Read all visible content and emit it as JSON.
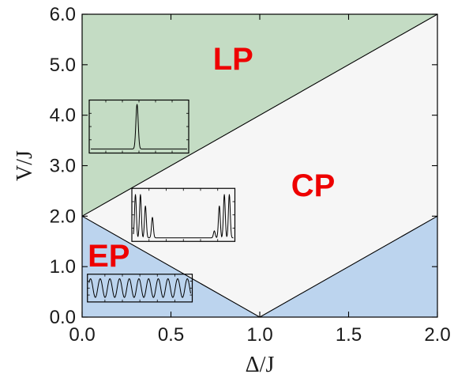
{
  "chart_data": {
    "type": "area",
    "title": "",
    "xlabel": "Δ/J",
    "ylabel": "V/J",
    "xlim": [
      0.0,
      2.0
    ],
    "ylim": [
      0.0,
      6.0
    ],
    "xticks": [
      "0.0",
      "0.5",
      "1.0",
      "1.5",
      "2.0"
    ],
    "yticks": [
      "0.0",
      "1.0",
      "2.0",
      "3.0",
      "4.0",
      "5.0",
      "6.0"
    ],
    "boundaries": [
      {
        "points": [
          [
            0.0,
            2.0
          ],
          [
            2.0,
            6.0
          ]
        ]
      },
      {
        "points": [
          [
            0.0,
            2.0
          ],
          [
            1.0,
            0.0
          ],
          [
            2.0,
            2.0
          ]
        ]
      }
    ],
    "regions": [
      {
        "label": "LP",
        "color": "#c4dcc4",
        "label_at": [
          0.85,
          4.9
        ],
        "polygon": [
          [
            0.0,
            2.0
          ],
          [
            2.0,
            6.0
          ],
          [
            0.0,
            6.0
          ]
        ]
      },
      {
        "label": "CP",
        "color": "#f6f6f6",
        "label_at": [
          1.3,
          2.4
        ],
        "polygon": [
          [
            0.0,
            2.0
          ],
          [
            1.0,
            0.0
          ],
          [
            2.0,
            2.0
          ],
          [
            2.0,
            6.0
          ]
        ]
      },
      {
        "label": "EP",
        "color": "#bcd4ee",
        "label_at": [
          0.15,
          1.0
        ],
        "polygon": [
          [
            0.0,
            0.0
          ],
          [
            1.0,
            0.0
          ],
          [
            0.0,
            2.0
          ]
        ]
      },
      {
        "label": "",
        "color": "#bcd4ee",
        "polygon": [
          [
            1.0,
            0.0
          ],
          [
            2.0,
            0.0
          ],
          [
            2.0,
            2.0
          ]
        ]
      }
    ],
    "insets": [
      {
        "name": "localized",
        "at": [
          0.04,
          3.25
        ],
        "to": [
          0.6,
          4.3
        ],
        "profile": "single-peak"
      },
      {
        "name": "edge",
        "at": [
          0.28,
          2.55
        ],
        "to": [
          0.86,
          1.5
        ],
        "profile": "edge-peaks"
      },
      {
        "name": "extended",
        "at": [
          0.03,
          0.85
        ],
        "to": [
          0.62,
          0.3
        ],
        "profile": "oscillating"
      }
    ]
  }
}
